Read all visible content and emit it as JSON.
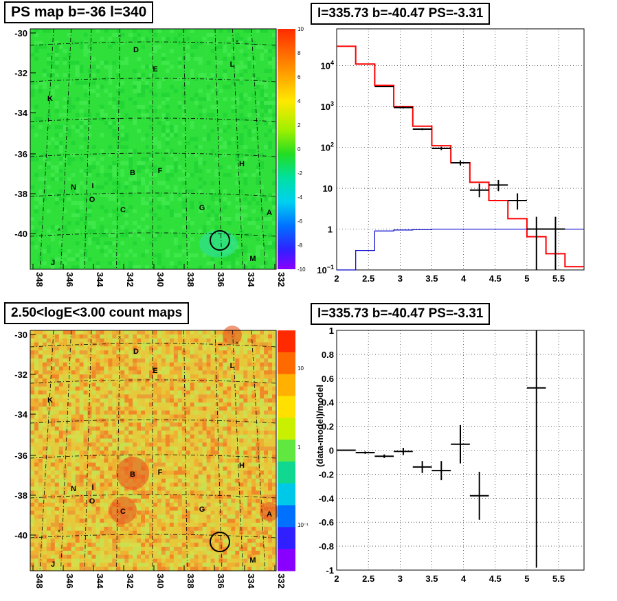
{
  "panels": {
    "tl_title": "PS map b=-36 l=340",
    "tr_title": "l=335.73 b=-40.47 PS=-3.31",
    "bl_title": "2.50<logE<3.00 count maps",
    "br_title": "l=335.73 b=-40.47 PS=-3.31"
  },
  "maps": {
    "lon_ticks": [
      "348",
      "346",
      "344",
      "342",
      "340",
      "338",
      "336",
      "334",
      "332"
    ],
    "lat_ticks": [
      "-30",
      "-32",
      "-34",
      "-36",
      "-38",
      "-40"
    ],
    "source_letters": [
      "D",
      "E",
      "L",
      "K",
      "H",
      "B",
      "F",
      "N",
      "I",
      "O",
      "C",
      "G",
      "A",
      "M",
      "J"
    ],
    "ps_colorbar_ticks": [
      "10",
      "8",
      "6",
      "4",
      "2",
      "0",
      "-2",
      "-4",
      "-6",
      "-8",
      "-10"
    ],
    "count_colorbar_ticks": [
      "10",
      "1",
      "10-1"
    ],
    "colors": {
      "ps_background": "#2fdb2b",
      "count_background": "#e6c83a",
      "circle": "#000000"
    }
  },
  "chart_data": [
    {
      "type": "line",
      "title": "l=335.73 b=-40.47 PS=-3.31",
      "xlabel": "",
      "ylabel": "",
      "ylog": true,
      "xlim": [
        2,
        5.9
      ],
      "ylim": [
        0.1,
        80000
      ],
      "x_ticks": [
        "2",
        "2.5",
        "3",
        "3.5",
        "4",
        "4.5",
        "5",
        "5.5"
      ],
      "y_ticks": [
        "10^4",
        "10^3",
        "10^2",
        "10",
        "1",
        "10^-1"
      ],
      "grid": true,
      "series": [
        {
          "style": "step",
          "color": "#ff0000",
          "edges": [
            2.0,
            2.3,
            2.6,
            2.9,
            3.2,
            3.5,
            3.8,
            4.1,
            4.4,
            4.7,
            5.0,
            5.3,
            5.6,
            5.9
          ],
          "values": [
            30000,
            11000,
            3300,
            1000,
            330,
            110,
            42,
            14,
            5,
            1.8,
            0.65,
            0.25,
            0.12
          ]
        },
        {
          "style": "step",
          "color": "#0000cc",
          "edges": [
            2.0,
            2.3,
            2.6,
            2.9,
            3.2,
            3.5,
            3.8,
            4.1,
            4.4,
            4.7,
            5.0,
            5.3,
            5.6,
            5.9
          ],
          "values": [
            0.1,
            0.3,
            0.9,
            0.95,
            0.97,
            1.0,
            1.0,
            1.0,
            1.0,
            1.0,
            1.0,
            1.0,
            1.0
          ]
        },
        {
          "style": "errorbar",
          "color": "#000000",
          "points": [
            {
              "x": 2.75,
              "y": 3100,
              "xe": 0.15,
              "ylo": 3000,
              "yhi": 3200
            },
            {
              "x": 3.05,
              "y": 950,
              "xe": 0.15,
              "ylo": 900,
              "yhi": 1000
            },
            {
              "x": 3.35,
              "y": 280,
              "xe": 0.15,
              "ylo": 265,
              "yhi": 295
            },
            {
              "x": 3.65,
              "y": 95,
              "xe": 0.15,
              "ylo": 86,
              "yhi": 104
            },
            {
              "x": 3.95,
              "y": 42,
              "xe": 0.15,
              "ylo": 36,
              "yhi": 48
            },
            {
              "x": 4.25,
              "y": 9,
              "xe": 0.15,
              "ylo": 6,
              "yhi": 13
            },
            {
              "x": 4.55,
              "y": 12,
              "xe": 0.15,
              "ylo": 8.5,
              "yhi": 16
            },
            {
              "x": 4.85,
              "y": 5,
              "xe": 0.15,
              "ylo": 3,
              "yhi": 7.5
            },
            {
              "x": 5.15,
              "y": 1,
              "xe": 0.15,
              "ylo": 0.1,
              "yhi": 2
            },
            {
              "x": 5.45,
              "y": 1,
              "xe": 0.15,
              "ylo": 0.1,
              "yhi": 2
            }
          ]
        }
      ]
    },
    {
      "type": "scatter",
      "title": "l=335.73 b=-40.47 PS=-3.31",
      "xlabel": "",
      "ylabel": "(data-model)/model",
      "xlim": [
        2,
        5.9
      ],
      "ylim": [
        -1,
        1
      ],
      "x_ticks": [
        "2",
        "2.5",
        "3",
        "3.5",
        "4",
        "4.5",
        "5",
        "5.5"
      ],
      "y_ticks": [
        "1",
        "0.8",
        "0.6",
        "0.4",
        "0.2",
        "0",
        "-0.2",
        "-0.4",
        "-0.6",
        "-0.8",
        "-1"
      ],
      "grid": true,
      "points": [
        {
          "x": 2.15,
          "y": 0.0,
          "xe": 0.15,
          "ye": 0.005
        },
        {
          "x": 2.45,
          "y": -0.02,
          "xe": 0.15,
          "ye": 0.01
        },
        {
          "x": 2.75,
          "y": -0.05,
          "xe": 0.15,
          "ye": 0.015
        },
        {
          "x": 3.05,
          "y": -0.01,
          "xe": 0.15,
          "ye": 0.03
        },
        {
          "x": 3.35,
          "y": -0.14,
          "xe": 0.15,
          "ye": 0.05
        },
        {
          "x": 3.65,
          "y": -0.17,
          "xe": 0.15,
          "ye": 0.08
        },
        {
          "x": 3.95,
          "y": 0.05,
          "xe": 0.15,
          "ye": 0.16
        },
        {
          "x": 4.25,
          "y": -0.38,
          "xe": 0.15,
          "ye": 0.2
        },
        {
          "x": 5.15,
          "y": 0.52,
          "xe": 0.15,
          "ye": 1.5
        }
      ]
    }
  ]
}
